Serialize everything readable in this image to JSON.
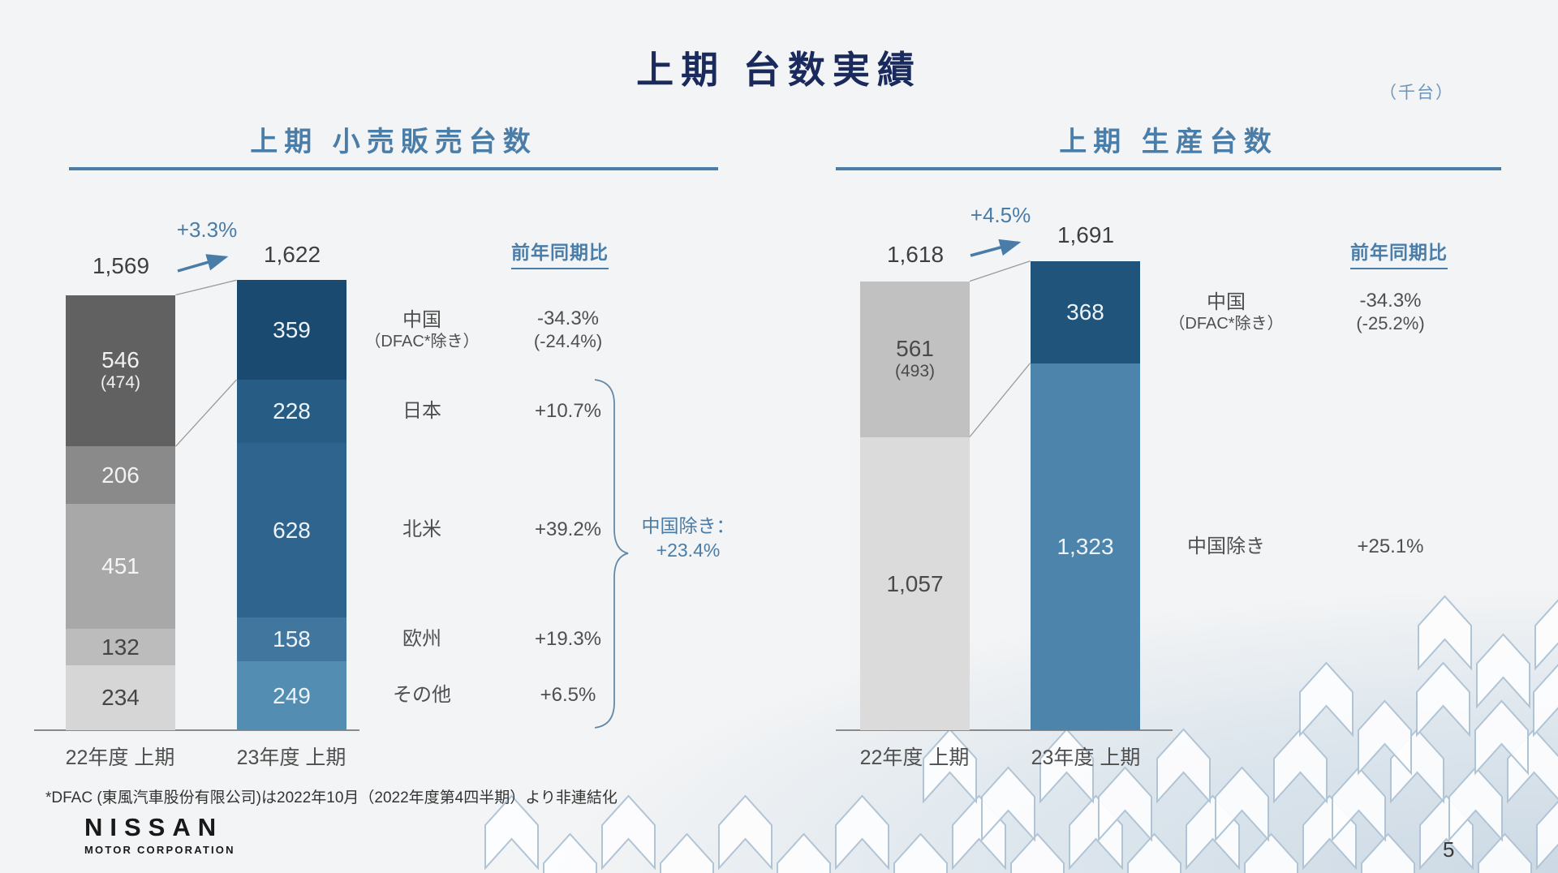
{
  "slide": {
    "title": "上期 台数実績",
    "unit_note": "（千台）",
    "footnote": "*DFAC (東風汽車股份有限公司)は2022年10月（2022年度第4四半期）より非連結化",
    "page_number": "5",
    "logo_text": "NISSAN",
    "logo_subtext": "MOTOR CORPORATION"
  },
  "colors": {
    "title_navy": "#1b2a5c",
    "steel_blue": "#4b7da9",
    "axis_gray": "#8a8a8a",
    "connector_gray": "#9a9a9a"
  },
  "chart_data": [
    {
      "type": "bar",
      "stacked": true,
      "title": "上期 小売販売台数",
      "unit": "千台",
      "growth_label": "+3.3%",
      "categories": [
        "22年度 上期",
        "23年度 上期"
      ],
      "bars": [
        {
          "category": "22年度 上期",
          "total": 1569,
          "total_label": "1,569",
          "segments": [
            {
              "label": "546",
              "sub": "(474)",
              "value": 546,
              "color": "#616161",
              "text_color": "#f2f2f2"
            },
            {
              "label": "206",
              "value": 206,
              "color": "#8a8a8a",
              "text_color": "#f2f2f2"
            },
            {
              "label": "451",
              "value": 451,
              "color": "#a8a8a8",
              "text_color": "#f5f5f5"
            },
            {
              "label": "132",
              "value": 132,
              "color": "#bcbcbc",
              "text_color": "#454545"
            },
            {
              "label": "234",
              "value": 234,
              "color": "#d6d6d6",
              "text_color": "#454545"
            }
          ]
        },
        {
          "category": "23年度 上期",
          "total": 1622,
          "total_label": "1,622",
          "segments": [
            {
              "label": "359",
              "value": 359,
              "color": "#1a4a70",
              "text_color": "#edf3f8"
            },
            {
              "label": "228",
              "value": 228,
              "color": "#275d84",
              "text_color": "#edf3f8"
            },
            {
              "label": "628",
              "value": 628,
              "color": "#2e648d",
              "text_color": "#edf3f8"
            },
            {
              "label": "158",
              "value": 158,
              "color": "#41779f",
              "text_color": "#edf3f8"
            },
            {
              "label": "249",
              "value": 249,
              "color": "#548db2",
              "text_color": "#edf3f8"
            }
          ]
        }
      ],
      "yoy": {
        "header": "前年同期比",
        "rows": [
          {
            "region": "中国",
            "region_sub": "（DFAC*除き）",
            "value": "-34.3%",
            "value_sub": "(-24.4%)"
          },
          {
            "region": "日本",
            "value": "+10.7%"
          },
          {
            "region": "北米",
            "value": "+39.2%"
          },
          {
            "region": "欧州",
            "value": "+19.3%"
          },
          {
            "region": "その他",
            "value": "+6.5%"
          }
        ]
      },
      "ex_china": {
        "label": "中国除き：",
        "value": "+23.4%"
      }
    },
    {
      "type": "bar",
      "stacked": true,
      "title": "上期 生産台数",
      "unit": "千台",
      "growth_label": "+4.5%",
      "categories": [
        "22年度 上期",
        "23年度 上期"
      ],
      "bars": [
        {
          "category": "22年度 上期",
          "total": 1618,
          "total_label": "1,618",
          "segments": [
            {
              "label": "561",
              "sub": "(493)",
              "value": 561,
              "color": "#c1c1c1",
              "text_color": "#4a4a4a"
            },
            {
              "label": "1,057",
              "value": 1057,
              "color": "#dbdbdb",
              "text_color": "#4a4a4a"
            }
          ]
        },
        {
          "category": "23年度 上期",
          "total": 1691,
          "total_label": "1,691",
          "segments": [
            {
              "label": "368",
              "value": 368,
              "color": "#20547a",
              "text_color": "#edf3f8"
            },
            {
              "label": "1,323",
              "value": 1323,
              "color": "#4c84ac",
              "text_color": "#edf3f8"
            }
          ]
        }
      ],
      "yoy": {
        "header": "前年同期比",
        "rows": [
          {
            "region": "中国",
            "region_sub": "（DFAC*除き）",
            "value": "-34.3%",
            "value_sub": "(-25.2%)"
          },
          {
            "region": "中国除き",
            "value": "+25.1%"
          }
        ]
      }
    }
  ]
}
